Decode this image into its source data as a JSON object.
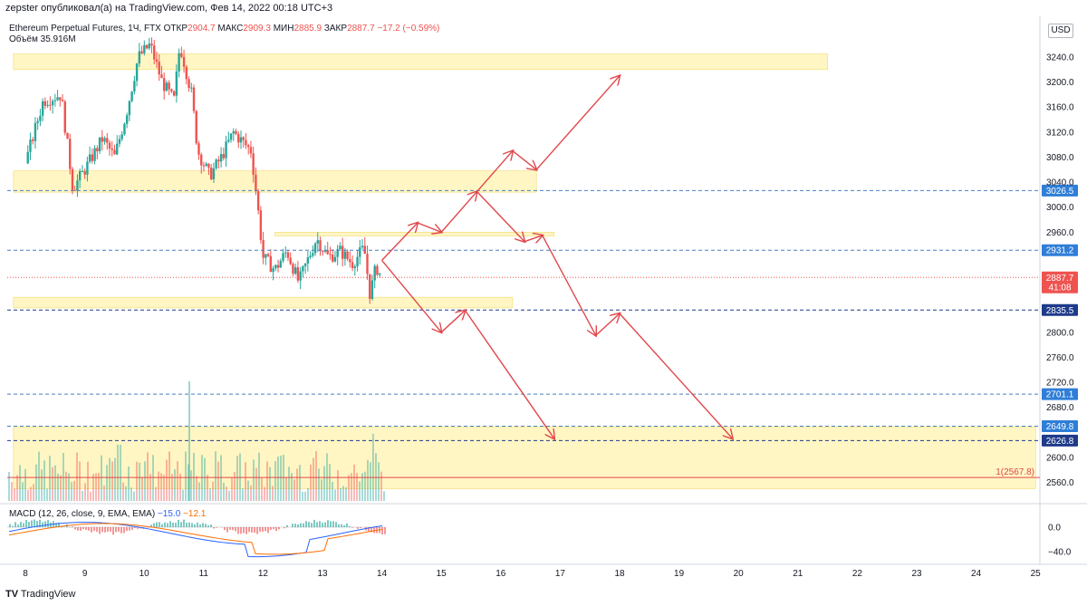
{
  "header": {
    "publisher_line": "zepster опубликовал(а) на TradingView.com, Фев 14, 2022 00:18 UTC+3"
  },
  "legend": {
    "symbol": "Ethereum Perpetual Futures, 1Ч, FTX",
    "open_label": "ОТКР",
    "open_value": "2904.7",
    "high_label": "МАКС",
    "high_value": "2909.3",
    "low_label": "МИН",
    "low_value": "2885.9",
    "close_label": "ЗАКР",
    "close_value": "2887.7",
    "change": "−17.2 (−0.59%)",
    "volume_label": "Объём",
    "volume_value": "35.916M"
  },
  "macd_legend": {
    "label": "MACD (12, 26, close, 9, EMA, EMA)",
    "signal": "−15.0",
    "macd": "−12.1"
  },
  "currency": "USD",
  "footer": {
    "brand": "TradingView"
  },
  "colors": {
    "up": "#26a69a",
    "down": "#ef5350",
    "zone": "#fff3b0",
    "arrow": "#e0474c",
    "macd_line": "#2962ff",
    "signal_line": "#ff6d00"
  },
  "chart_data": {
    "type": "candlestick",
    "title": "Ethereum Perpetual Futures, 1Ч, FTX",
    "ylim": [
      2540,
      3280
    ],
    "y_ticks": [
      "3240.0",
      "3200.0",
      "3160.0",
      "3120.0",
      "3080.0",
      "3040.0",
      "3000.0",
      "2960.0",
      "2920.0",
      "2880.0",
      "2840.0",
      "2800.0",
      "2760.0",
      "2720.0",
      "2680.0",
      "2640.0",
      "2600.0",
      "2560.0"
    ],
    "x_ticks": [
      "8",
      "9",
      "10",
      "11",
      "12",
      "13",
      "14",
      "15",
      "16",
      "17",
      "18",
      "19",
      "20",
      "21",
      "22",
      "23",
      "24",
      "25"
    ],
    "price_path": [
      {
        "day": 8.0,
        "price": 3070
      },
      {
        "day": 8.3,
        "price": 3170
      },
      {
        "day": 8.6,
        "price": 3180
      },
      {
        "day": 8.8,
        "price": 3030
      },
      {
        "day": 9.0,
        "price": 3060
      },
      {
        "day": 9.3,
        "price": 3110
      },
      {
        "day": 9.5,
        "price": 3080
      },
      {
        "day": 9.7,
        "price": 3150
      },
      {
        "day": 9.9,
        "price": 3240
      },
      {
        "day": 10.1,
        "price": 3260
      },
      {
        "day": 10.3,
        "price": 3200
      },
      {
        "day": 10.5,
        "price": 3170
      },
      {
        "day": 10.6,
        "price": 3260
      },
      {
        "day": 10.8,
        "price": 3180
      },
      {
        "day": 10.9,
        "price": 3090
      },
      {
        "day": 11.1,
        "price": 3050
      },
      {
        "day": 11.3,
        "price": 3080
      },
      {
        "day": 11.5,
        "price": 3120
      },
      {
        "day": 11.8,
        "price": 3090
      },
      {
        "day": 11.9,
        "price": 3010
      },
      {
        "day": 12.0,
        "price": 2920
      },
      {
        "day": 12.2,
        "price": 2900
      },
      {
        "day": 12.4,
        "price": 2930
      },
      {
        "day": 12.6,
        "price": 2880
      },
      {
        "day": 12.9,
        "price": 2950
      },
      {
        "day": 13.1,
        "price": 2920
      },
      {
        "day": 13.3,
        "price": 2930
      },
      {
        "day": 13.5,
        "price": 2910
      },
      {
        "day": 13.7,
        "price": 2935
      },
      {
        "day": 13.8,
        "price": 2860
      },
      {
        "day": 13.9,
        "price": 2905
      },
      {
        "day": 14.0,
        "price": 2888
      }
    ],
    "price_lines": [
      {
        "label": "3026.5",
        "value": 3026.5,
        "style": "dashed-blue"
      },
      {
        "label": "2931.2",
        "value": 2931.2,
        "style": "dashed-blue"
      },
      {
        "label": "2887.7",
        "sublabel": "41:08",
        "value": 2887.7,
        "style": "dotted-red"
      },
      {
        "label": "2835.5",
        "value": 2835.5,
        "style": "dashed-navy"
      },
      {
        "label": "2701.1",
        "value": 2701.1,
        "style": "dashed-blue"
      },
      {
        "label": "2649.8",
        "value": 2649.8,
        "style": "dashed-blue"
      },
      {
        "label": "2626.8",
        "value": 2626.8,
        "style": "dashed-navy"
      }
    ],
    "hline": {
      "label": "1(2567.8)",
      "value": 2567.8
    },
    "zones": [
      {
        "from_day": 7.8,
        "to_day": 21.5,
        "low": 3220,
        "high": 3245
      },
      {
        "from_day": 7.8,
        "to_day": 16.6,
        "low": 3024,
        "high": 3058
      },
      {
        "from_day": 12.2,
        "to_day": 16.9,
        "low": 2954,
        "high": 2960
      },
      {
        "from_day": 7.8,
        "to_day": 16.2,
        "low": 2839,
        "high": 2856
      },
      {
        "from_day": 7.8,
        "to_day": 25.0,
        "low": 2550,
        "high": 2649
      }
    ],
    "projection_paths": [
      [
        {
          "day": 14.0,
          "price": 2915
        },
        {
          "day": 14.6,
          "price": 2975
        },
        {
          "day": 15.0,
          "price": 2960
        },
        {
          "day": 15.6,
          "price": 3025
        },
        {
          "day": 16.2,
          "price": 3090
        },
        {
          "day": 16.6,
          "price": 3060
        },
        {
          "day": 18.0,
          "price": 3210
        }
      ],
      [
        {
          "day": 15.6,
          "price": 3025
        },
        {
          "day": 16.4,
          "price": 2945
        },
        {
          "day": 16.7,
          "price": 2955
        },
        {
          "day": 17.6,
          "price": 2795
        },
        {
          "day": 18.0,
          "price": 2830
        },
        {
          "day": 19.9,
          "price": 2630
        }
      ],
      [
        {
          "day": 14.0,
          "price": 2915
        },
        {
          "day": 15.0,
          "price": 2800
        },
        {
          "day": 15.4,
          "price": 2835
        },
        {
          "day": 16.9,
          "price": 2630
        }
      ]
    ],
    "macd": {
      "ylim": [
        -55,
        20
      ],
      "y_ticks": [
        "0.0",
        "−40.0"
      ]
    }
  }
}
